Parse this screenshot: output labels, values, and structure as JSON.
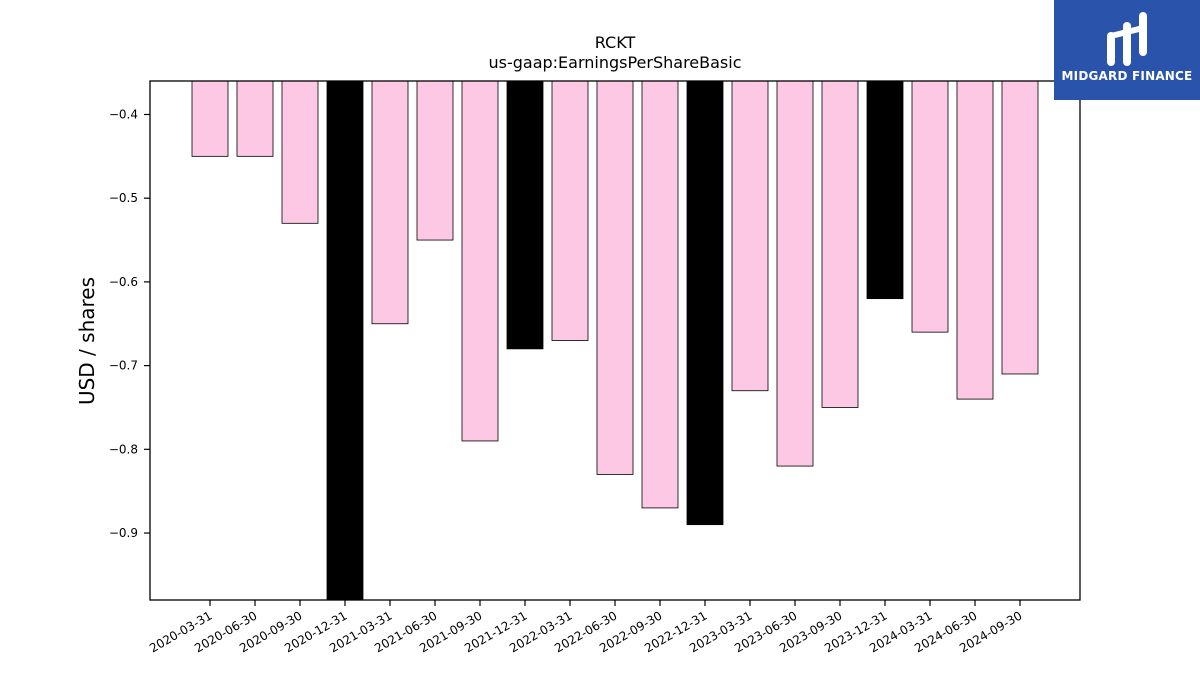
{
  "logo": {
    "text": "MIDGARD FINANCE",
    "background": "#2a54ab"
  },
  "chart_data": {
    "type": "bar",
    "title": "RCKT",
    "subtitle": "us-gaap:EarningsPerShareBasic",
    "xlabel": "",
    "ylabel": "USD / shares",
    "ylim": [
      -0.98,
      -0.36
    ],
    "yticks": [
      "−0.4",
      "−0.5",
      "−0.6",
      "−0.7",
      "−0.8",
      "−0.9"
    ],
    "ytick_values": [
      -0.4,
      -0.5,
      -0.6,
      -0.7,
      -0.8,
      -0.9
    ],
    "categories": [
      "2020-03-31",
      "2020-06-30",
      "2020-09-30",
      "2020-12-31",
      "2021-03-31",
      "2021-06-30",
      "2021-09-30",
      "2021-12-31",
      "2022-03-31",
      "2022-06-30",
      "2022-09-30",
      "2022-12-31",
      "2023-03-31",
      "2023-06-30",
      "2023-09-30",
      "2023-12-31",
      "2024-03-31",
      "2024-06-30",
      "2024-09-30"
    ],
    "values": [
      -0.45,
      -0.45,
      -0.53,
      -0.98,
      -0.65,
      -0.55,
      -0.79,
      -0.68,
      -0.67,
      -0.83,
      -0.87,
      -0.89,
      -0.73,
      -0.82,
      -0.75,
      -0.62,
      -0.66,
      -0.74,
      -0.71
    ],
    "bar_colors": [
      "#fcc8e4",
      "#fcc8e4",
      "#fcc8e4",
      "#000000",
      "#fcc8e4",
      "#fcc8e4",
      "#fcc8e4",
      "#000000",
      "#fcc8e4",
      "#fcc8e4",
      "#fcc8e4",
      "#000000",
      "#fcc8e4",
      "#fcc8e4",
      "#fcc8e4",
      "#000000",
      "#fcc8e4",
      "#fcc8e4",
      "#fcc8e4"
    ],
    "grid": false,
    "legend": "none"
  }
}
